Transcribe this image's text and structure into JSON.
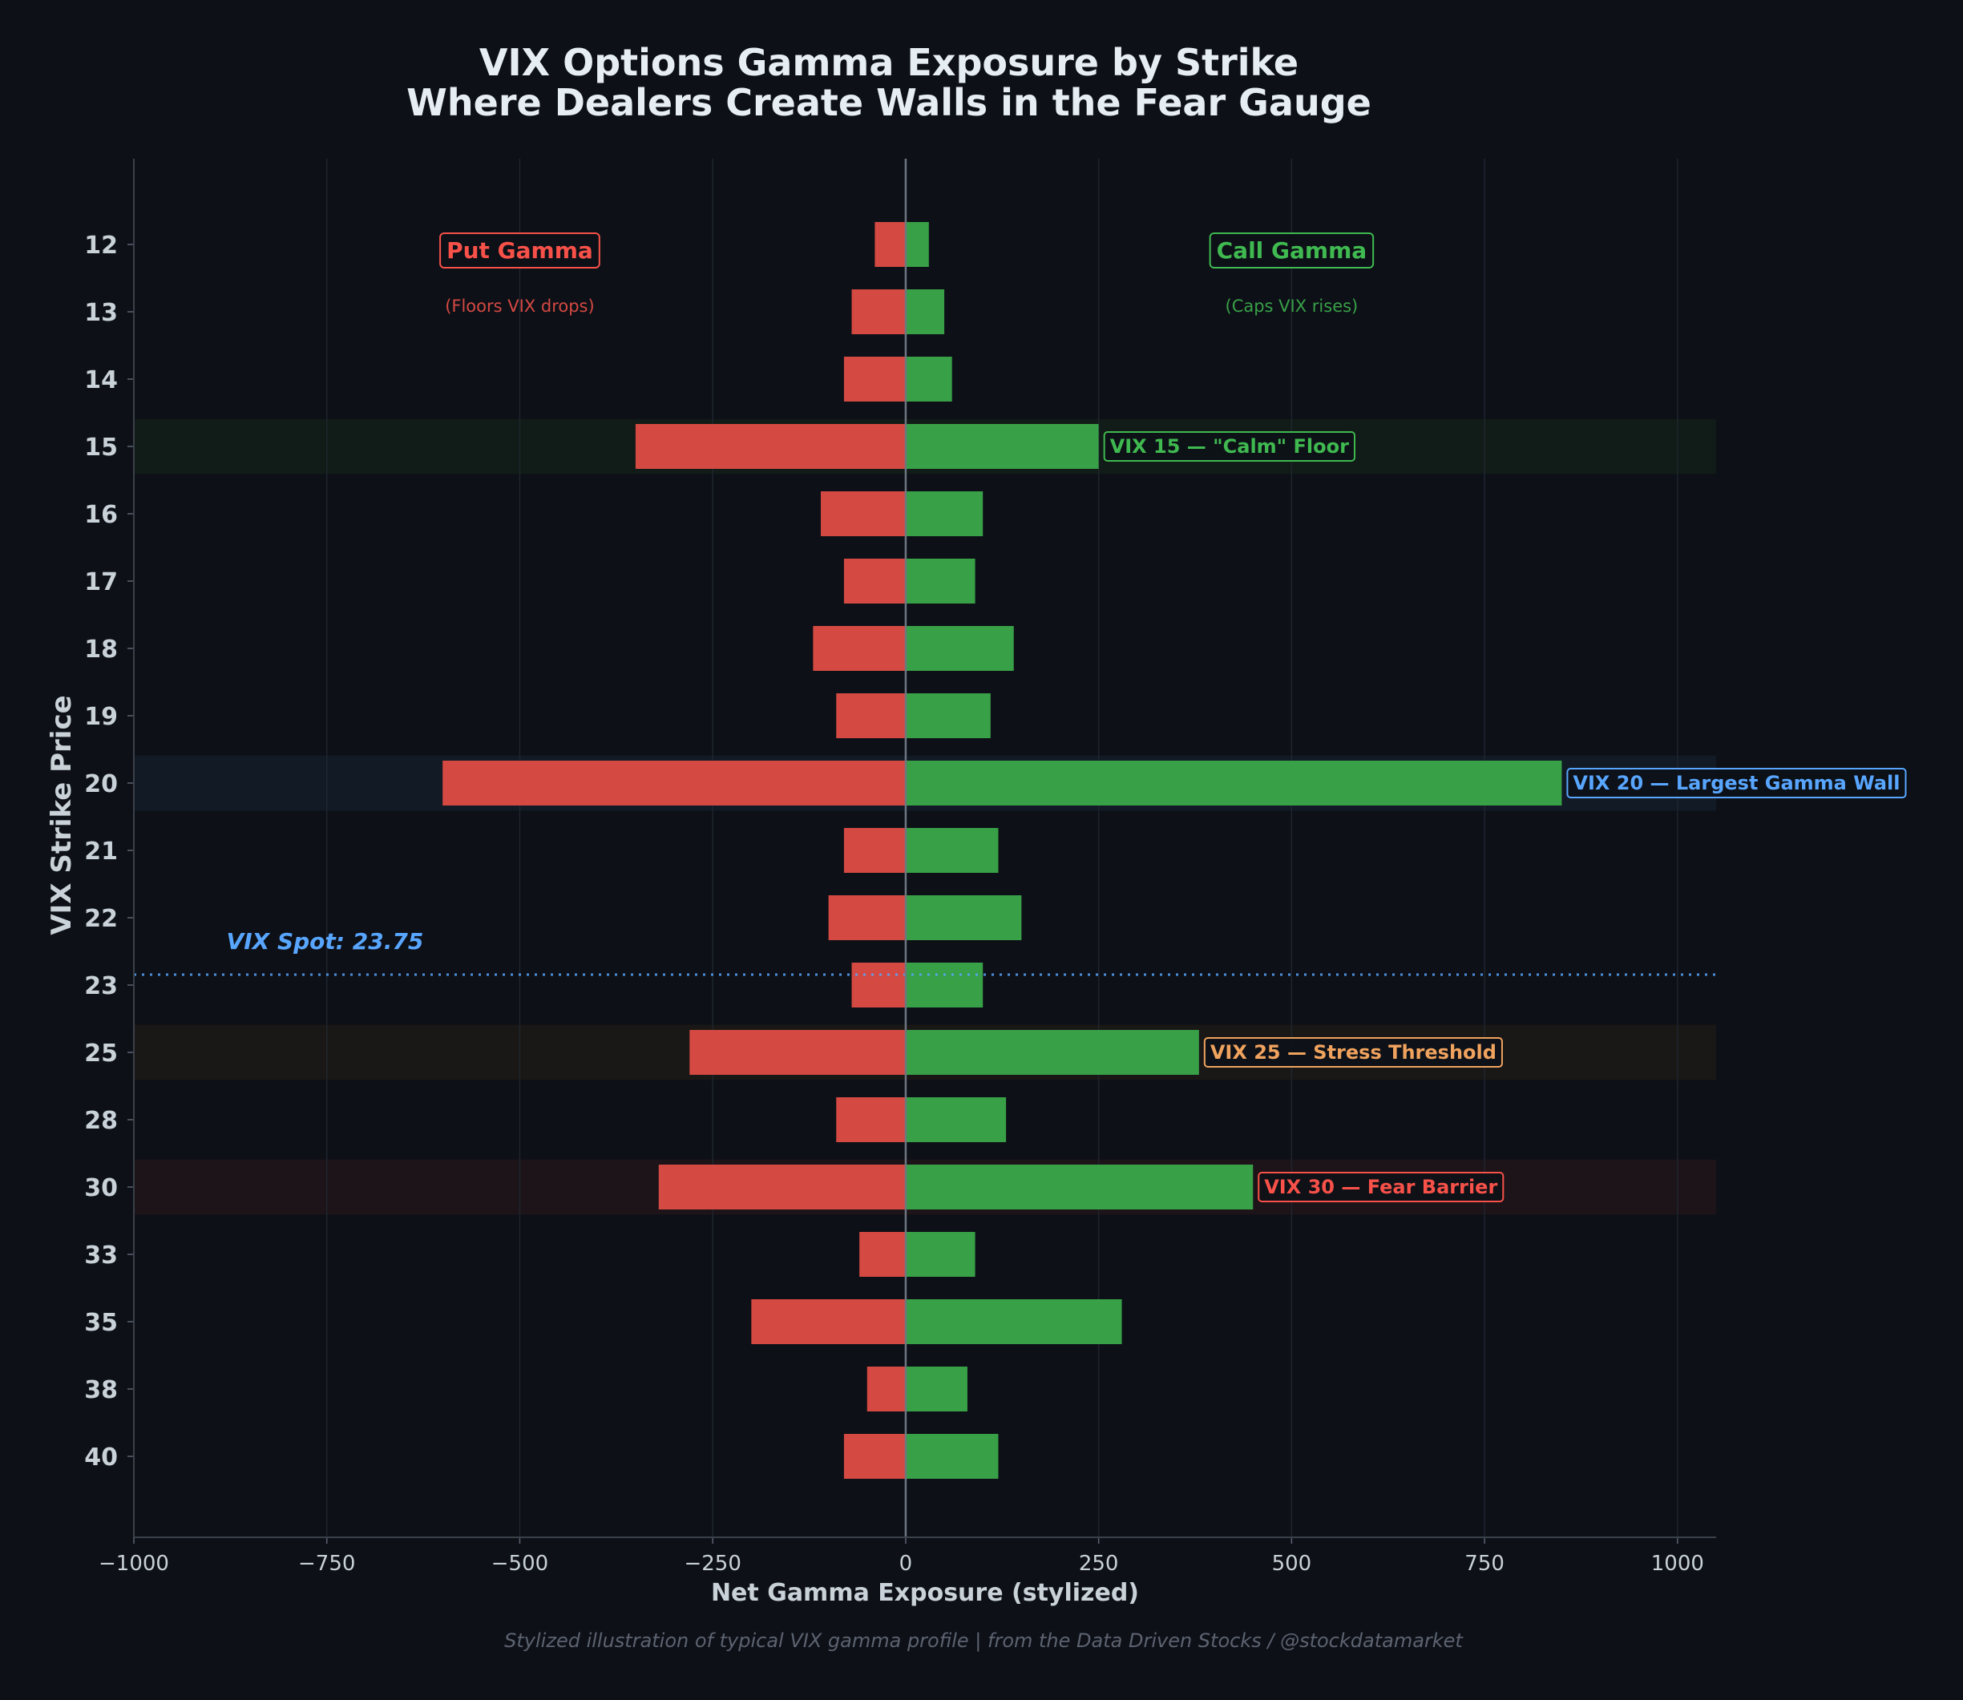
{
  "chart_data": {
    "type": "bar",
    "orientation": "horizontal",
    "title_lines": [
      "VIX Options Gamma Exposure by Strike",
      "Where Dealers Create Walls in the Fear Gauge"
    ],
    "xlabel": "Net Gamma Exposure (stylized)",
    "ylabel": "VIX Strike Price",
    "xlim": [
      -1000,
      1050
    ],
    "xticks": [
      -1000,
      -750,
      -500,
      -250,
      0,
      250,
      500,
      750,
      1000
    ],
    "xtick_labels": [
      "−1000",
      "−750",
      "−500",
      "−250",
      "0",
      "250",
      "500",
      "750",
      "1000"
    ],
    "grid": true,
    "categories": [
      "12",
      "13",
      "14",
      "15",
      "16",
      "17",
      "18",
      "19",
      "20",
      "21",
      "22",
      "23",
      "25",
      "28",
      "30",
      "33",
      "35",
      "38",
      "40"
    ],
    "series": [
      {
        "name": "Put Gamma",
        "color": "#d44942",
        "values": [
          -40,
          -70,
          -80,
          -350,
          -110,
          -80,
          -120,
          -90,
          -600,
          -80,
          -100,
          -70,
          -280,
          -90,
          -320,
          -60,
          -200,
          -50,
          -80
        ]
      },
      {
        "name": "Call Gamma",
        "color": "#38a047",
        "values": [
          30,
          50,
          60,
          250,
          100,
          90,
          140,
          110,
          850,
          120,
          150,
          100,
          380,
          130,
          450,
          90,
          280,
          80,
          120
        ]
      }
    ],
    "legend": {
      "put": {
        "title": "Put Gamma",
        "subtitle": "(Floors VIX drops)",
        "color": "#f85149",
        "sub_color": "#d44942",
        "x": -500
      },
      "call": {
        "title": "Call Gamma",
        "subtitle": "(Caps VIX rises)",
        "color": "#3fb950",
        "sub_color": "#38a047",
        "x": 500
      }
    },
    "highlights": [
      {
        "category": "15",
        "label": "VIX 15 — \"Calm\" Floor",
        "color": "#3fb950",
        "band": "#111b17"
      },
      {
        "category": "20",
        "label": "VIX 20 — Largest Gamma Wall",
        "color": "#58a6ff",
        "band": "#111a25"
      },
      {
        "category": "25",
        "label": "VIX 25 — Stress Threshold",
        "color": "#f0a35e",
        "band": "#1a1816"
      },
      {
        "category": "30",
        "label": "VIX 30 — Fear Barrier",
        "color": "#f85149",
        "band": "#1c1418"
      }
    ],
    "spot": {
      "value": 23.75,
      "label": "VIX Spot: 23.75",
      "color": "#58a6ff",
      "label_x": -880
    },
    "footer": "Stylized illustration of typical VIX gamma profile | from the Data Driven Stocks / @stockdatamarket"
  }
}
